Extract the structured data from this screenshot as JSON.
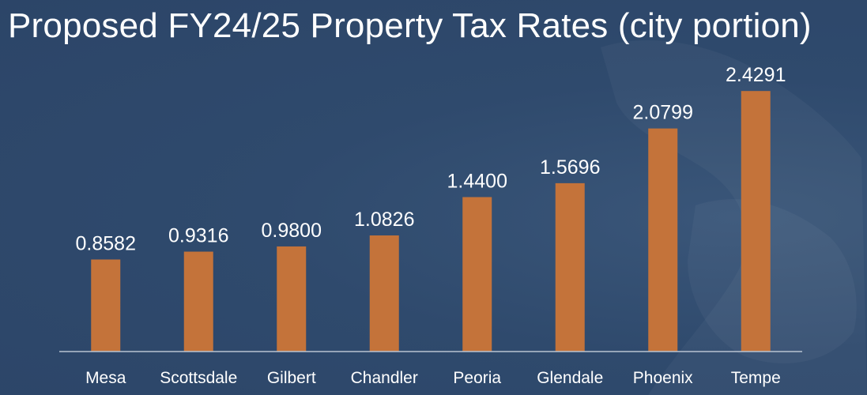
{
  "slide": {
    "background_color": "#2f4a6d",
    "accent_color": "#c4733a"
  },
  "chart_data": {
    "type": "bar",
    "title": "Proposed FY24/25 Property Tax Rates (city portion)",
    "categories": [
      "Mesa",
      "Scottsdale",
      "Gilbert",
      "Chandler",
      "Peoria",
      "Glendale",
      "Phoenix",
      "Tempe"
    ],
    "values": [
      0.8582,
      0.9316,
      0.98,
      1.0826,
      1.44,
      1.5696,
      2.0799,
      2.4291
    ],
    "data_labels": [
      "0.8582",
      "0.9316",
      "0.9800",
      "1.0826",
      "1.4400",
      "1.5696",
      "2.0799",
      "2.4291"
    ],
    "xlabel": "",
    "ylabel": "",
    "ylim": [
      0,
      2.6
    ],
    "grid": false,
    "legend": "none",
    "bar_color": "#c4733a"
  }
}
